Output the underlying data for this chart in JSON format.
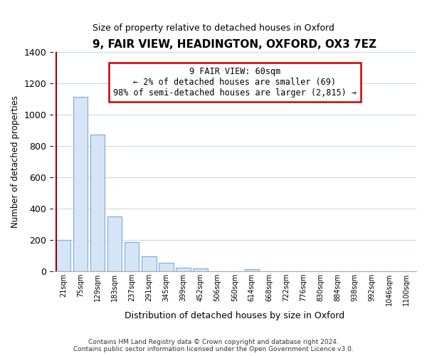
{
  "title": "9, FAIR VIEW, HEADINGTON, OXFORD, OX3 7EZ",
  "subtitle": "Size of property relative to detached houses in Oxford",
  "xlabel": "Distribution of detached houses by size in Oxford",
  "ylabel": "Number of detached properties",
  "bar_labels": [
    "21sqm",
    "75sqm",
    "129sqm",
    "183sqm",
    "237sqm",
    "291sqm",
    "345sqm",
    "399sqm",
    "452sqm",
    "506sqm",
    "560sqm",
    "614sqm",
    "668sqm",
    "722sqm",
    "776sqm",
    "830sqm",
    "884sqm",
    "938sqm",
    "992sqm",
    "1046sqm",
    "1100sqm"
  ],
  "bar_values": [
    200,
    1110,
    870,
    350,
    185,
    95,
    55,
    22,
    15,
    0,
    0,
    12,
    0,
    0,
    0,
    0,
    0,
    0,
    0,
    0,
    0
  ],
  "bar_fill_color": "#d6e4f7",
  "bar_edge_color": "#7aacda",
  "annotation_text": "9 FAIR VIEW: 60sqm\n← 2% of detached houses are smaller (69)\n98% of semi-detached houses are larger (2,815) →",
  "annotation_box_color": "#ffffff",
  "annotation_border_color": "#cc0000",
  "marker_line_color": "#990000",
  "ylim": [
    0,
    1400
  ],
  "yticks": [
    0,
    200,
    400,
    600,
    800,
    1000,
    1200,
    1400
  ],
  "footer_line1": "Contains HM Land Registry data © Crown copyright and database right 2024.",
  "footer_line2": "Contains public sector information licensed under the Open Government Licence v3.0.",
  "bg_color": "#ffffff",
  "grid_color": "#c8d8f0"
}
